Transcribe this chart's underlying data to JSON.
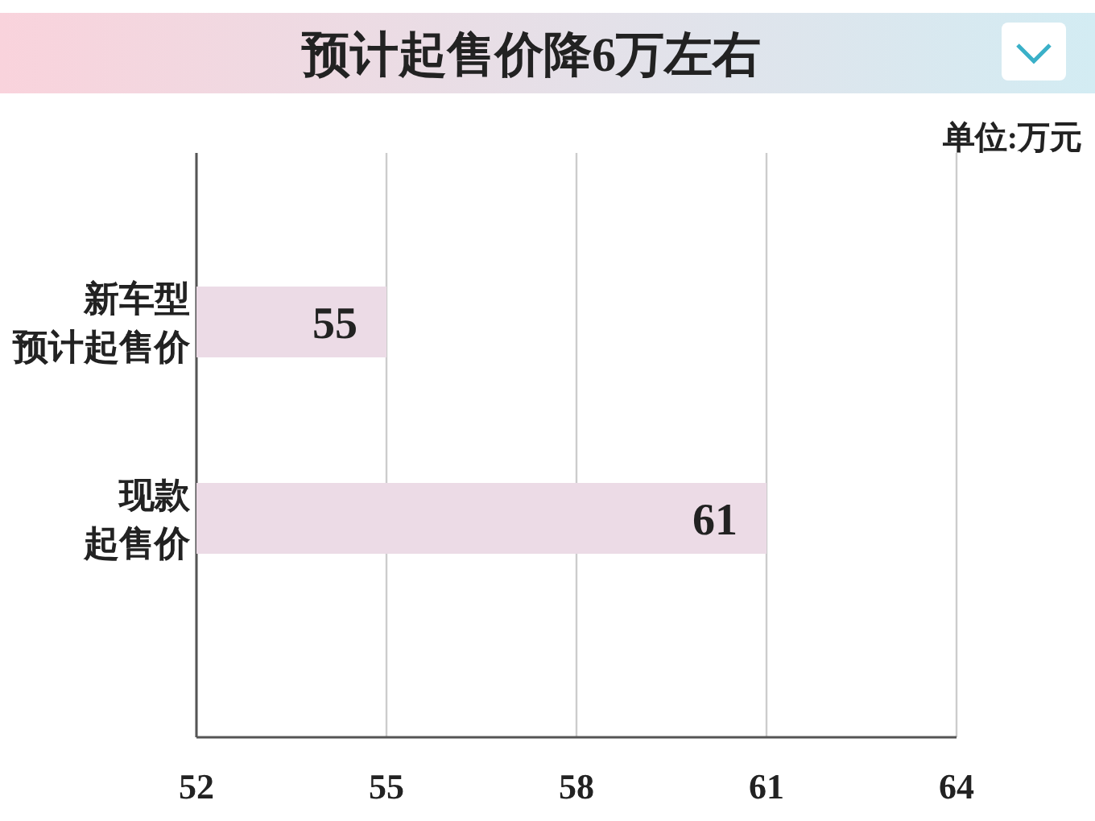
{
  "chart_data": {
    "type": "bar",
    "orientation": "horizontal",
    "title": "预计起售价降6万左右",
    "categories": [
      "新车型预计起售价",
      "现款起售价"
    ],
    "values": [
      55,
      61
    ],
    "color": "#ecdbe6",
    "xlim": [
      52,
      64
    ],
    "xticks": [
      52,
      55,
      58,
      61,
      64
    ],
    "grid": "x",
    "data_labels": true,
    "annotations": [
      "单位:万元"
    ]
  }
}
